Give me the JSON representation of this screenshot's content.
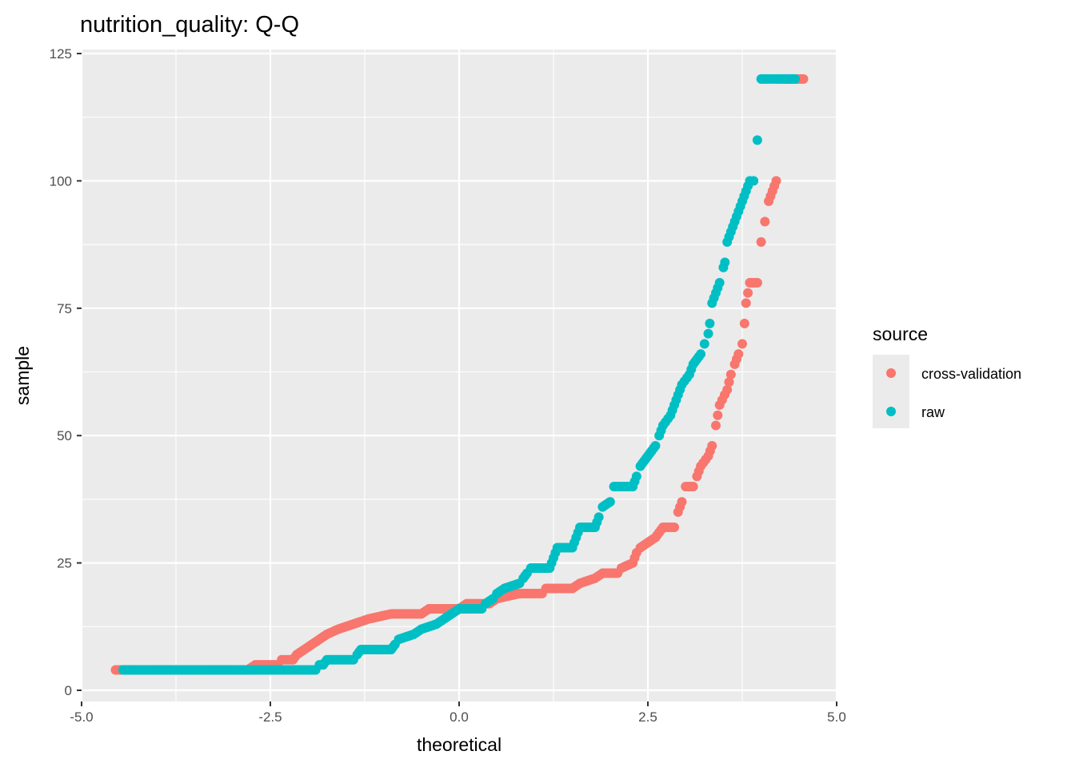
{
  "chart_data": {
    "type": "scatter",
    "title": "nutrition_quality: Q-Q",
    "xlabel": "theoretical",
    "ylabel": "sample",
    "xlim": [
      -5.0,
      5.0
    ],
    "ylim": [
      0,
      125
    ],
    "x_ticks": [
      -5.0,
      -2.5,
      0.0,
      2.5,
      5.0
    ],
    "x_tick_labels": [
      "-5.0",
      "-2.5",
      "0.0",
      "2.5",
      "5.0"
    ],
    "y_ticks": [
      0,
      25,
      50,
      75,
      100,
      125
    ],
    "y_tick_labels": [
      "0",
      "25",
      "50",
      "75",
      "100",
      "125"
    ],
    "grid": true,
    "legend": {
      "title": "source",
      "placement": "right"
    },
    "series": [
      {
        "name": "cross-validation",
        "color": "#F8766D",
        "points": [
          [
            -4.55,
            4
          ],
          [
            -4.2,
            4
          ],
          [
            -4.0,
            4
          ],
          [
            -3.5,
            4
          ],
          [
            -3.0,
            4
          ],
          [
            -2.8,
            4
          ],
          [
            -2.7,
            5
          ],
          [
            -2.4,
            5
          ],
          [
            -2.35,
            6
          ],
          [
            -2.2,
            6
          ],
          [
            -2.15,
            7
          ],
          [
            -2.05,
            8
          ],
          [
            -1.95,
            9
          ],
          [
            -1.85,
            10
          ],
          [
            -1.75,
            11
          ],
          [
            -1.6,
            12
          ],
          [
            -1.4,
            13
          ],
          [
            -1.2,
            14
          ],
          [
            -0.9,
            15
          ],
          [
            -0.5,
            15
          ],
          [
            -0.4,
            16
          ],
          [
            0.0,
            16
          ],
          [
            0.1,
            17
          ],
          [
            0.4,
            17
          ],
          [
            0.5,
            18
          ],
          [
            0.8,
            19
          ],
          [
            1.1,
            19
          ],
          [
            1.15,
            20
          ],
          [
            1.5,
            20
          ],
          [
            1.6,
            21
          ],
          [
            1.8,
            22
          ],
          [
            1.9,
            23
          ],
          [
            2.1,
            23
          ],
          [
            2.15,
            24
          ],
          [
            2.3,
            25
          ],
          [
            2.35,
            27
          ],
          [
            2.4,
            28
          ],
          [
            2.6,
            30
          ],
          [
            2.7,
            32
          ],
          [
            2.85,
            32
          ],
          [
            2.9,
            35
          ],
          [
            2.95,
            37
          ],
          [
            3.0,
            40
          ],
          [
            3.1,
            40
          ],
          [
            3.15,
            42
          ],
          [
            3.2,
            44
          ],
          [
            3.3,
            46
          ],
          [
            3.35,
            48
          ],
          [
            3.4,
            52
          ],
          [
            3.45,
            56
          ],
          [
            3.55,
            59
          ],
          [
            3.6,
            62
          ],
          [
            3.65,
            64
          ],
          [
            3.7,
            66
          ],
          [
            3.75,
            68
          ],
          [
            3.78,
            72
          ],
          [
            3.8,
            76
          ],
          [
            3.85,
            80
          ],
          [
            3.95,
            80
          ],
          [
            4.0,
            88
          ],
          [
            4.05,
            92
          ],
          [
            4.1,
            96
          ],
          [
            4.2,
            100
          ],
          [
            4.3,
            120
          ],
          [
            4.56,
            120
          ]
        ]
      },
      {
        "name": "raw",
        "color": "#00BFC4",
        "points": [
          [
            -4.45,
            4
          ],
          [
            -4.2,
            4
          ],
          [
            -4.0,
            4
          ],
          [
            -3.0,
            4
          ],
          [
            -2.0,
            4
          ],
          [
            -1.9,
            4
          ],
          [
            -1.85,
            5
          ],
          [
            -1.8,
            5
          ],
          [
            -1.75,
            6
          ],
          [
            -1.4,
            6
          ],
          [
            -1.35,
            7
          ],
          [
            -1.3,
            8
          ],
          [
            -0.9,
            8
          ],
          [
            -0.85,
            9
          ],
          [
            -0.8,
            10
          ],
          [
            -0.6,
            11
          ],
          [
            -0.5,
            12
          ],
          [
            -0.3,
            13
          ],
          [
            -0.2,
            14
          ],
          [
            -0.1,
            15
          ],
          [
            0.0,
            16
          ],
          [
            0.3,
            16
          ],
          [
            0.35,
            17
          ],
          [
            0.45,
            18
          ],
          [
            0.5,
            19
          ],
          [
            0.6,
            20
          ],
          [
            0.8,
            21
          ],
          [
            0.85,
            22
          ],
          [
            0.9,
            23
          ],
          [
            0.95,
            24
          ],
          [
            1.2,
            24
          ],
          [
            1.25,
            26
          ],
          [
            1.3,
            28
          ],
          [
            1.5,
            28
          ],
          [
            1.55,
            30
          ],
          [
            1.6,
            32
          ],
          [
            1.8,
            32
          ],
          [
            1.85,
            34
          ],
          [
            1.9,
            36
          ],
          [
            2.0,
            37
          ],
          [
            2.05,
            40
          ],
          [
            2.3,
            40
          ],
          [
            2.35,
            42
          ],
          [
            2.4,
            44
          ],
          [
            2.5,
            46
          ],
          [
            2.6,
            48
          ],
          [
            2.65,
            50
          ],
          [
            2.7,
            52
          ],
          [
            2.8,
            54
          ],
          [
            2.85,
            56
          ],
          [
            2.95,
            60
          ],
          [
            3.05,
            62
          ],
          [
            3.1,
            64
          ],
          [
            3.2,
            66
          ],
          [
            3.25,
            68
          ],
          [
            3.3,
            70
          ],
          [
            3.32,
            72
          ],
          [
            3.35,
            76
          ],
          [
            3.45,
            80
          ],
          [
            3.5,
            83
          ],
          [
            3.52,
            84
          ],
          [
            3.55,
            88
          ],
          [
            3.65,
            92
          ],
          [
            3.75,
            96
          ],
          [
            3.85,
            100
          ],
          [
            3.9,
            100
          ],
          [
            3.95,
            108
          ],
          [
            4.0,
            120
          ],
          [
            4.08,
            120
          ],
          [
            4.18,
            120
          ],
          [
            4.45,
            120
          ]
        ]
      }
    ]
  }
}
